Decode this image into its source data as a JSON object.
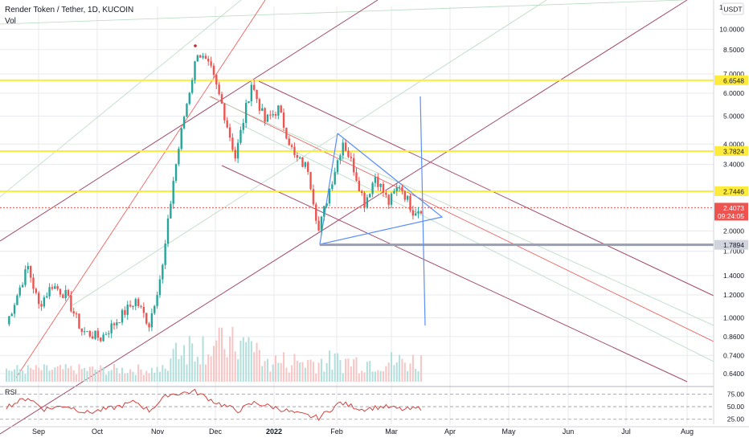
{
  "header": {
    "symbol": "Render Token / Tether, 1D, KUCOIN",
    "volume_label": "Vol",
    "rsi_label": "RSI",
    "currency": "USDT"
  },
  "colors": {
    "up": "#26a69a",
    "down": "#ef5350",
    "support_line": "#ffeb3b",
    "triangle": "#5b8ff5",
    "pitchfork_outer": "#a14a6b",
    "pitchfork_inner": "#ef5350",
    "pitchfork_green": "#b7d9c0",
    "rsi_line": "#d5423e",
    "grid": "#e8eaee"
  },
  "chart_data": {
    "type": "candlestick",
    "scale": "log",
    "price_axis_ticks": [
      "10.0000",
      "8.5000",
      "7.0000",
      "6.0000",
      "5.0000",
      "4.0000",
      "3.4000",
      "2.0000",
      "1.7000",
      "1.4000",
      "1.2000",
      "1.0000",
      "0.8600",
      "0.7400",
      "0.6400"
    ],
    "price_tick_values": [
      10.0,
      8.5,
      7.0,
      6.0,
      5.0,
      4.0,
      3.4,
      2.0,
      1.7,
      1.4,
      1.2,
      1.0,
      0.86,
      0.74,
      0.64
    ],
    "price_range": [
      0.6,
      12.0
    ],
    "time_labels": [
      "Sep",
      "Oct",
      "Nov",
      "Dec",
      "2022",
      "Feb",
      "Mar",
      "Apr",
      "May",
      "Jun",
      "Jul",
      "Aug"
    ],
    "horizontal_levels": [
      {
        "price": 6.6548,
        "label": "6.6548",
        "color": "#ffeb3b"
      },
      {
        "price": 3.7824,
        "label": "3.7824",
        "color": "#ffeb3b"
      },
      {
        "price": 2.7446,
        "label": "2.7446",
        "color": "#ffeb3b"
      },
      {
        "price": 1.7894,
        "label": "1.7894",
        "color": "#9aa0b4"
      }
    ],
    "current_price": {
      "label": "2.4073",
      "countdown": "09:24:05",
      "price": 2.4073
    },
    "rsi": {
      "ticks": [
        "75.00",
        "50.00",
        "25.00"
      ],
      "tick_values": [
        75,
        50,
        25
      ],
      "range": [
        15,
        90
      ]
    },
    "anchors": [
      {
        "t": 0,
        "p": 0.95
      },
      {
        "t": 6,
        "p": 1.35
      },
      {
        "t": 8,
        "p": 1.5
      },
      {
        "t": 12,
        "p": 1.1
      },
      {
        "t": 17,
        "p": 1.3
      },
      {
        "t": 22,
        "p": 1.2
      },
      {
        "t": 28,
        "p": 0.9
      },
      {
        "t": 35,
        "p": 0.85
      },
      {
        "t": 42,
        "p": 1.0
      },
      {
        "t": 48,
        "p": 1.15
      },
      {
        "t": 53,
        "p": 0.95
      },
      {
        "t": 58,
        "p": 1.5
      },
      {
        "t": 62,
        "p": 3.0
      },
      {
        "t": 66,
        "p": 5.0
      },
      {
        "t": 71,
        "p": 8.4
      },
      {
        "t": 76,
        "p": 7.2
      },
      {
        "t": 80,
        "p": 5.5
      },
      {
        "t": 85,
        "p": 3.6
      },
      {
        "t": 91,
        "p": 6.5
      },
      {
        "t": 96,
        "p": 4.8
      },
      {
        "t": 101,
        "p": 5.3
      },
      {
        "t": 107,
        "p": 3.6
      },
      {
        "t": 112,
        "p": 3.3
      },
      {
        "t": 116,
        "p": 2.0
      },
      {
        "t": 120,
        "p": 2.8
      },
      {
        "t": 125,
        "p": 4.1
      },
      {
        "t": 129,
        "p": 3.3
      },
      {
        "t": 133,
        "p": 2.5
      },
      {
        "t": 137,
        "p": 3.1
      },
      {
        "t": 142,
        "p": 2.5
      },
      {
        "t": 146,
        "p": 2.9
      },
      {
        "t": 151,
        "p": 2.35
      },
      {
        "t": 154,
        "p": 2.4
      }
    ],
    "rsi_anchors": [
      {
        "t": 0,
        "v": 50
      },
      {
        "t": 8,
        "v": 68
      },
      {
        "t": 14,
        "v": 45
      },
      {
        "t": 22,
        "v": 52
      },
      {
        "t": 30,
        "v": 38
      },
      {
        "t": 40,
        "v": 48
      },
      {
        "t": 48,
        "v": 60
      },
      {
        "t": 53,
        "v": 42
      },
      {
        "t": 60,
        "v": 74
      },
      {
        "t": 70,
        "v": 80
      },
      {
        "t": 78,
        "v": 58
      },
      {
        "t": 86,
        "v": 42
      },
      {
        "t": 92,
        "v": 58
      },
      {
        "t": 100,
        "v": 48
      },
      {
        "t": 108,
        "v": 36
      },
      {
        "t": 116,
        "v": 28
      },
      {
        "t": 124,
        "v": 58
      },
      {
        "t": 132,
        "v": 45
      },
      {
        "t": 140,
        "v": 50
      },
      {
        "t": 148,
        "v": 44
      },
      {
        "t": 154,
        "v": 47
      }
    ]
  }
}
